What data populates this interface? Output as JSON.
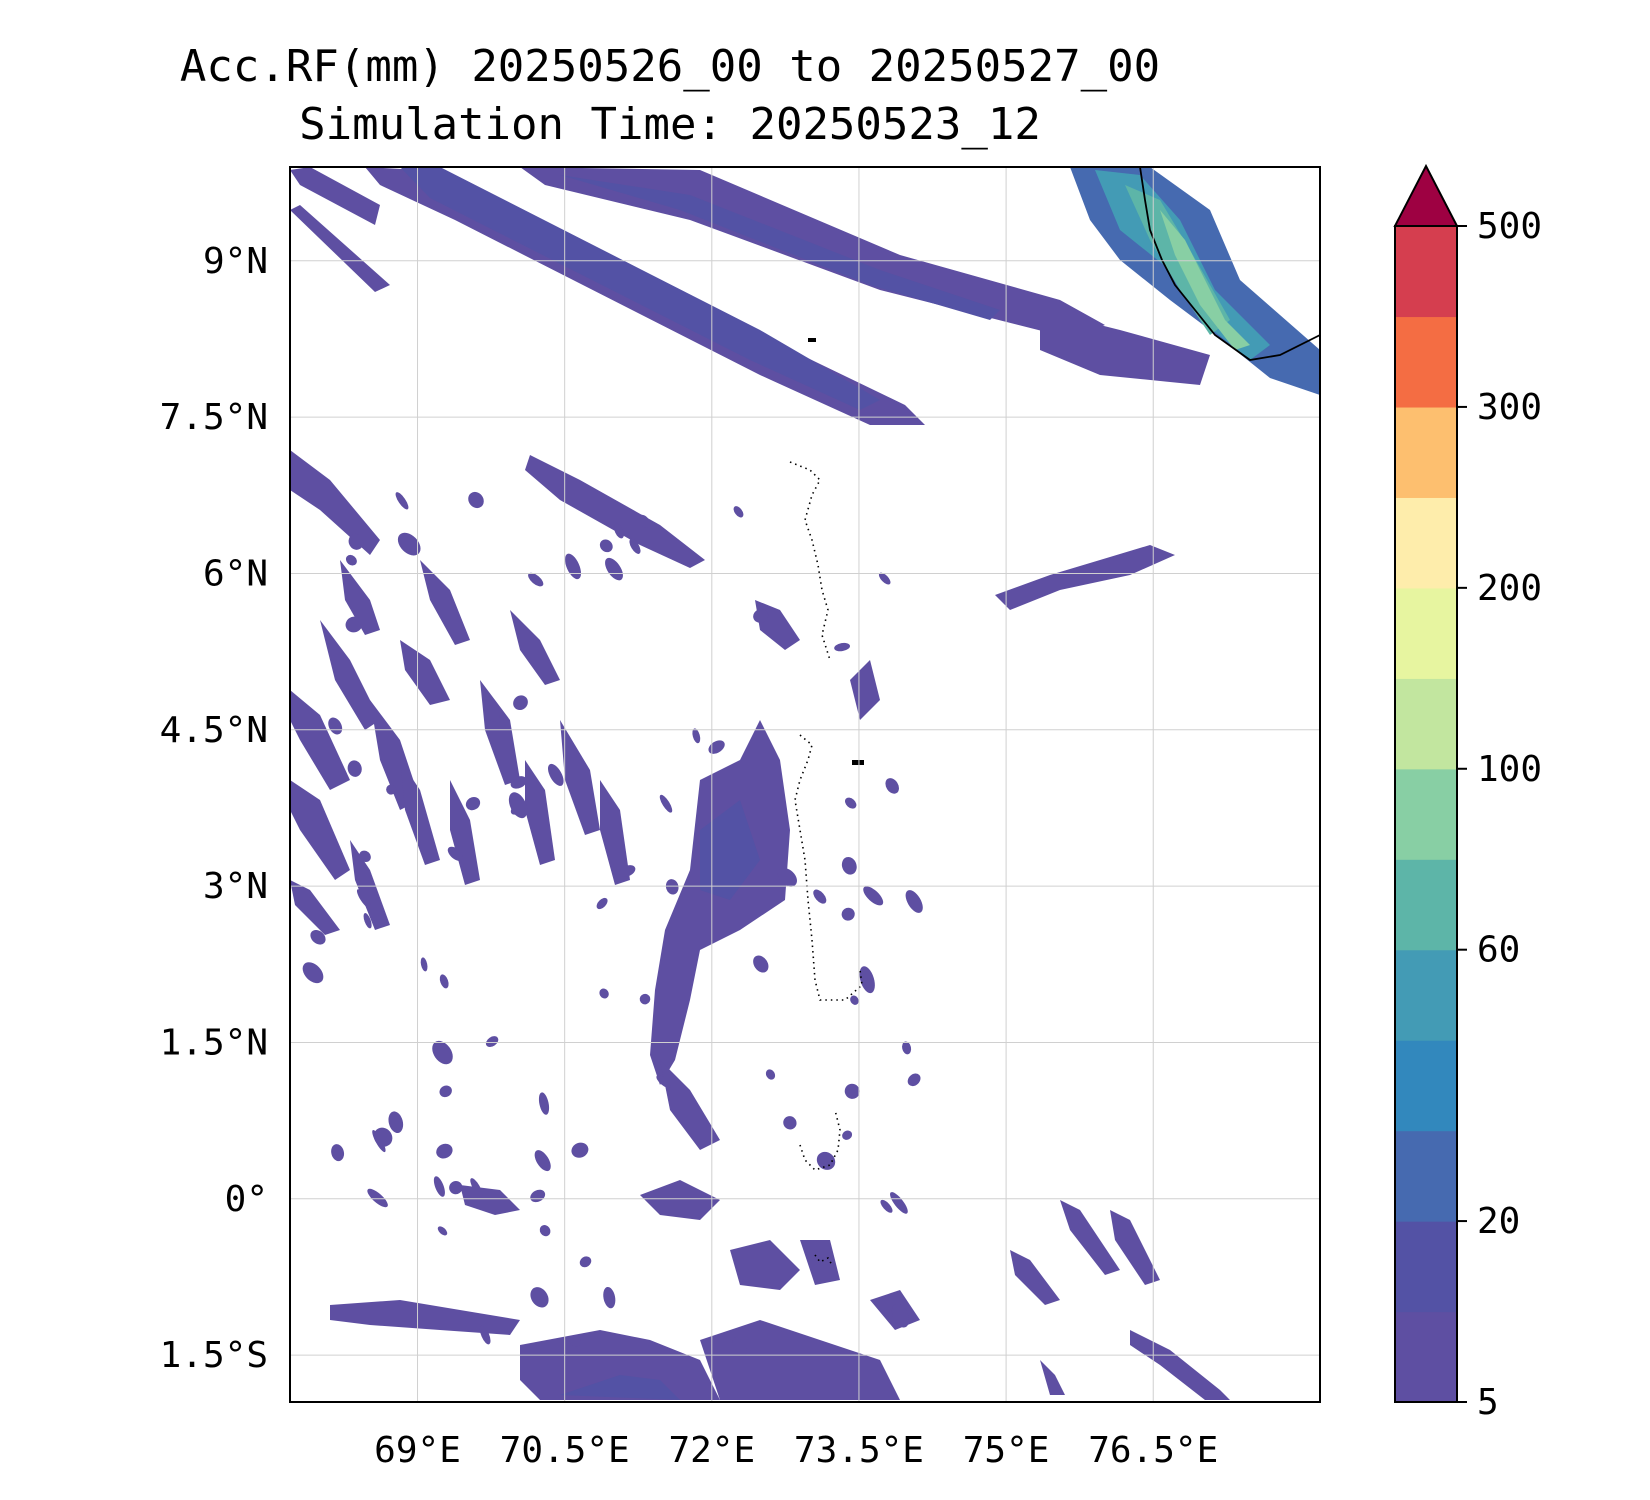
{
  "title": {
    "line1": "Acc.RF(mm) 20250526_00 to 20250527_00",
    "line2": "Simulation Time: 20250523_12"
  },
  "map": {
    "extent": {
      "lon": [
        67.7,
        78.2
      ],
      "lat": [
        -1.95,
        9.9
      ]
    },
    "lon_ticks": [
      {
        "value": 69.0,
        "label": "69°E"
      },
      {
        "value": 70.5,
        "label": "70.5°E"
      },
      {
        "value": 72.0,
        "label": "72°E"
      },
      {
        "value": 73.5,
        "label": "73.5°E"
      },
      {
        "value": 75.0,
        "label": "75°E"
      },
      {
        "value": 76.5,
        "label": "76.5°E"
      }
    ],
    "lat_ticks": [
      {
        "value": 9.0,
        "label": "9°N"
      },
      {
        "value": 7.5,
        "label": "7.5°N"
      },
      {
        "value": 6.0,
        "label": "6°N"
      },
      {
        "value": 4.5,
        "label": "4.5°N"
      },
      {
        "value": 3.0,
        "label": "3°N"
      },
      {
        "value": 1.5,
        "label": "1.5°N"
      },
      {
        "value": 0.0,
        "label": "0°"
      },
      {
        "value": -1.5,
        "label": "1.5°S"
      }
    ],
    "grid": true
  },
  "colorbar": {
    "levels": [
      5,
      10,
      20,
      40,
      50,
      60,
      80,
      100,
      150,
      200,
      250,
      300,
      400,
      500
    ],
    "tick_labels": [
      {
        "value": 5,
        "label": "5"
      },
      {
        "value": 20,
        "label": "20"
      },
      {
        "value": 60,
        "label": "60"
      },
      {
        "value": 100,
        "label": "100"
      },
      {
        "value": 200,
        "label": "200"
      },
      {
        "value": 300,
        "label": "300"
      },
      {
        "value": 500,
        "label": "500"
      }
    ],
    "colors": [
      "#5e4fa2",
      "#5352a5",
      "#466ab0",
      "#3288bd",
      "#439bb5",
      "#5db5a8",
      "#88cfa4",
      "#c2e69f",
      "#e7f5a0",
      "#feedab",
      "#fdbf6f",
      "#f46d43",
      "#d53e4f"
    ],
    "extend_color": "#9e0142"
  }
}
